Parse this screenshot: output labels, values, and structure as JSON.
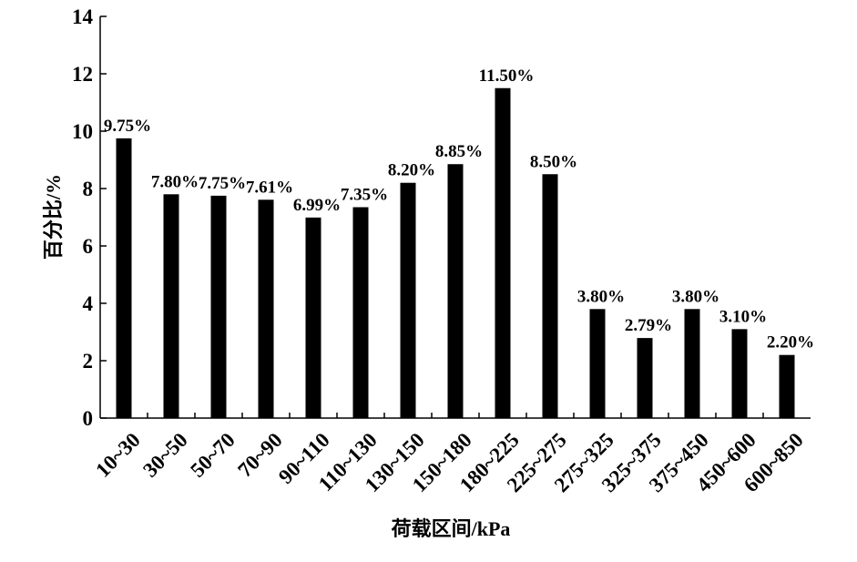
{
  "chart_data": {
    "type": "bar",
    "xlabel": "荷载区间/kPa",
    "ylabel": "百分比/%",
    "categories": [
      "10~30",
      "30~50",
      "50~70",
      "70~90",
      "90~110",
      "110~130",
      "130~150",
      "150~180",
      "180~225",
      "225~275",
      "275~325",
      "325~375",
      "375~450",
      "450~600",
      "600~850"
    ],
    "values": [
      9.75,
      7.8,
      7.75,
      7.61,
      6.99,
      7.35,
      8.2,
      8.85,
      11.5,
      8.5,
      3.8,
      2.79,
      3.8,
      3.1,
      2.2
    ],
    "value_labels": [
      "9.75%",
      "7.80%",
      "7.75%",
      "7.61%",
      "6.99%",
      "7.35%",
      "8.20%",
      "8.85%",
      "11.50%",
      "8.50%",
      "3.80%",
      "2.79%",
      "3.80%",
      "3.10%",
      "2.20%"
    ],
    "color": "#000000",
    "ylim": [
      0,
      14
    ],
    "yticks": [
      0,
      2,
      4,
      6,
      8,
      10,
      12,
      14
    ]
  }
}
